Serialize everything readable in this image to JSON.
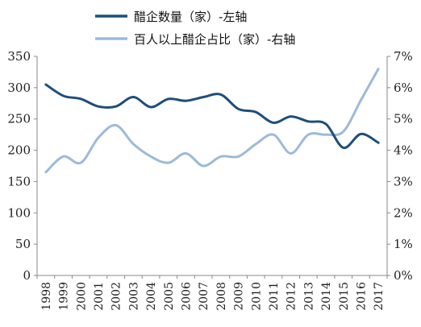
{
  "chart_data": {
    "type": "line",
    "x": [
      "1998",
      "1999",
      "2000",
      "2001",
      "2002",
      "2003",
      "2004",
      "2005",
      "2006",
      "2007",
      "2008",
      "2009",
      "2010",
      "2011",
      "2012",
      "2013",
      "2014",
      "2015",
      "2016",
      "2017"
    ],
    "series": [
      {
        "name": "醋企数量（家）-左轴",
        "axis": "left",
        "color": "#1f4e79",
        "values": [
          305,
          287,
          282,
          270,
          270,
          285,
          269,
          282,
          279,
          285,
          289,
          266,
          261,
          244,
          254,
          246,
          242,
          204,
          226,
          212
        ]
      },
      {
        "name": "百人以上醋企占比（家）-右轴",
        "axis": "right",
        "unit": "%",
        "color": "#9dbad8",
        "values": [
          3.3,
          3.8,
          3.6,
          4.4,
          4.8,
          4.2,
          3.8,
          3.6,
          3.9,
          3.5,
          3.8,
          3.8,
          4.2,
          4.5,
          3.9,
          4.5,
          4.5,
          4.6,
          5.6,
          6.6
        ]
      }
    ],
    "y_left": {
      "ylim": [
        0,
        350
      ],
      "ticks": [
        "0",
        "50",
        "100",
        "150",
        "200",
        "250",
        "300",
        "350"
      ]
    },
    "y_right": {
      "ylim": [
        0,
        7
      ],
      "ticks": [
        "0%",
        "1%",
        "2%",
        "3%",
        "4%",
        "5%",
        "6%",
        "7%"
      ]
    },
    "legend_placement": "top",
    "grid": false
  }
}
